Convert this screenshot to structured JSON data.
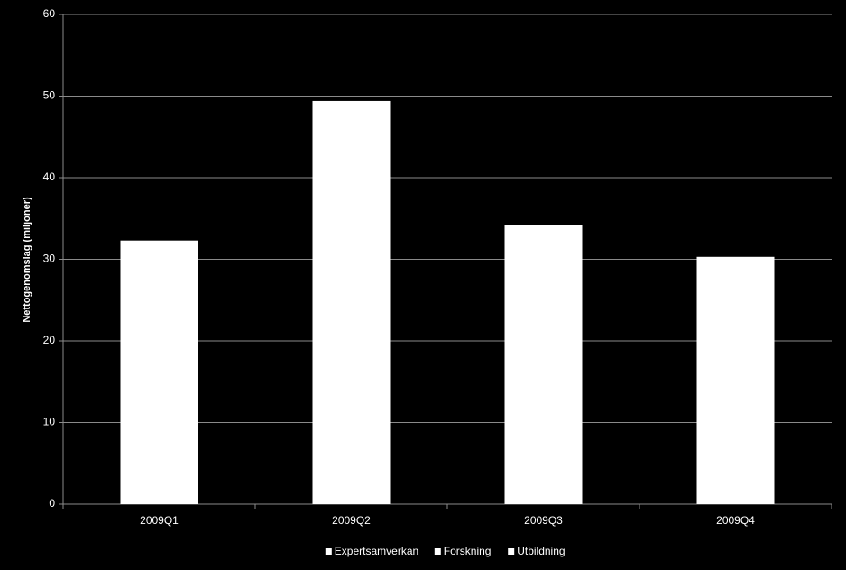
{
  "chart_data": {
    "type": "bar",
    "stacked": true,
    "y_label": "Nettogenomslag (miljoner)",
    "categories": [
      "2009Q1",
      "2009Q2",
      "2009Q3",
      "2009Q4"
    ],
    "series": [
      {
        "name": "Expertsamverkan",
        "color": "#ffffff",
        "values": [
          32.3,
          49.4,
          34.2,
          30.3
        ]
      },
      {
        "name": "Forskning",
        "color": "#ffffff",
        "values": [
          null,
          null,
          null,
          null
        ]
      },
      {
        "name": "Utbildning",
        "color": "#ffffff",
        "values": [
          null,
          null,
          null,
          null
        ]
      }
    ],
    "ylim": [
      0,
      60
    ],
    "yticks": [
      0,
      10,
      20,
      30,
      40,
      50,
      60
    ],
    "grid": true
  }
}
